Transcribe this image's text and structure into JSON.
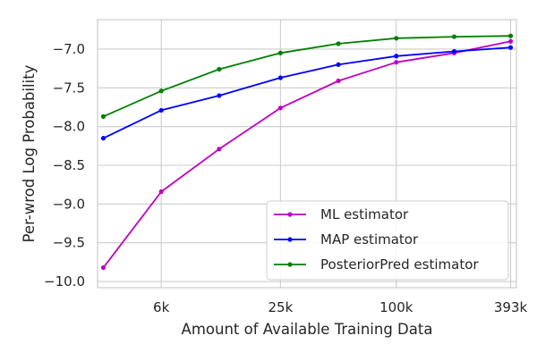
{
  "chart_data": {
    "type": "line",
    "title": "",
    "xlabel": "Amount of Available Training Data",
    "ylabel": "Per-wrod Log Probability",
    "x_scale": "log2",
    "x": [
      3000,
      6000,
      12000,
      25000,
      50000,
      100000,
      200000,
      393000
    ],
    "x_ticks": [
      6000,
      25000,
      100000,
      393000
    ],
    "x_tick_labels": [
      "6k",
      "25k",
      "100k",
      "393k"
    ],
    "y_ticks": [
      -10.0,
      -9.5,
      -9.0,
      -8.5,
      -8.0,
      -7.5,
      -7.0
    ],
    "y_tick_labels": [
      "−10.0",
      "−9.5",
      "−9.0",
      "−8.5",
      "−8.0",
      "−7.5",
      "−7.0"
    ],
    "ylim": [
      -10.08,
      -6.62
    ],
    "grid": true,
    "legend_position": "lower-right",
    "series": [
      {
        "name": "ML estimator",
        "color": "#bf00bf",
        "values": [
          -9.82,
          -8.84,
          -8.29,
          -7.76,
          -7.41,
          -7.17,
          -7.05,
          -6.9
        ]
      },
      {
        "name": "MAP estimator",
        "color": "#0000ff",
        "values": [
          -8.15,
          -7.79,
          -7.6,
          -7.37,
          -7.2,
          -7.09,
          -7.03,
          -6.98
        ]
      },
      {
        "name": "PosteriorPred estimator",
        "color": "#008000",
        "values": [
          -7.87,
          -7.54,
          -7.26,
          -7.05,
          -6.93,
          -6.86,
          -6.84,
          -6.83
        ]
      }
    ]
  }
}
